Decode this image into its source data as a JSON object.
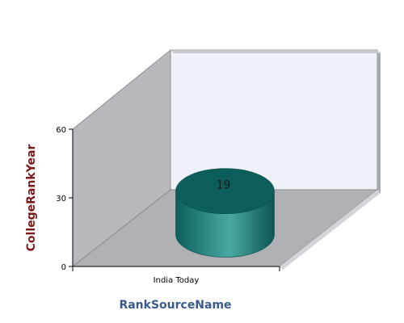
{
  "chart_data": {
    "type": "bar",
    "style": "3d-cylinder",
    "categories": [
      "India Today"
    ],
    "series": [
      {
        "values": [
          19
        ]
      }
    ],
    "data_labels": [
      "19"
    ],
    "xlabel": "RankSourceName",
    "ylabel": "CollegeRankYear",
    "ylim": [
      0,
      60
    ],
    "yticks": [
      0,
      30,
      60
    ],
    "ytick_labels": [
      "0",
      "30",
      "60"
    ],
    "grid": false,
    "legend": "none",
    "colors": {
      "bar": "#0f7b76",
      "bar_top": "#0b5e5a",
      "back_wall": "#eef2f8",
      "side_wall": "#b8b9bd",
      "floor": "#b0b1b5",
      "wall_edge": "#8c8c8c",
      "xlabel": "#3b5a8a",
      "ylabel": "#7a1a1a"
    }
  }
}
